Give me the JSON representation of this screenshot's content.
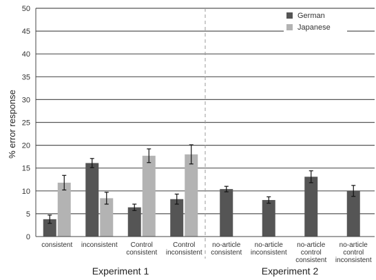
{
  "chart_data": {
    "type": "bar",
    "ylabel": "% error response",
    "ylim": [
      0,
      50
    ],
    "yticks": [
      0,
      5,
      10,
      15,
      20,
      25,
      30,
      35,
      40,
      45,
      50
    ],
    "grid": true,
    "legend_position": "top-right",
    "colors": {
      "German": "#555555",
      "Japanese": "#b3b3b3"
    },
    "series": [
      {
        "name": "German",
        "values": [
          3.8,
          16.1,
          6.4,
          8.2,
          10.4,
          8.0,
          13.1,
          10.0
        ],
        "errors": [
          0.9,
          1.0,
          0.7,
          1.1,
          0.6,
          0.7,
          1.3,
          1.2
        ]
      },
      {
        "name": "Japanese",
        "values": [
          11.8,
          8.4,
          17.7,
          18.0,
          null,
          null,
          null,
          null
        ],
        "errors": [
          1.6,
          1.3,
          1.5,
          2.1,
          null,
          null,
          null,
          null
        ]
      }
    ],
    "categories": [
      [
        "consistent"
      ],
      [
        "inconsistent"
      ],
      [
        "Control",
        "consistent"
      ],
      [
        "Control",
        "inconsistent"
      ],
      [
        "no-article",
        "consistent"
      ],
      [
        "no-article",
        "inconsistent"
      ],
      [
        "no-article",
        "control",
        "consistent"
      ],
      [
        "no-article",
        "control",
        "inconsistent"
      ]
    ],
    "groups": [
      {
        "label": "Experiment 1",
        "from": 0,
        "to": 3
      },
      {
        "label": "Experiment 2",
        "from": 4,
        "to": 7
      }
    ]
  }
}
